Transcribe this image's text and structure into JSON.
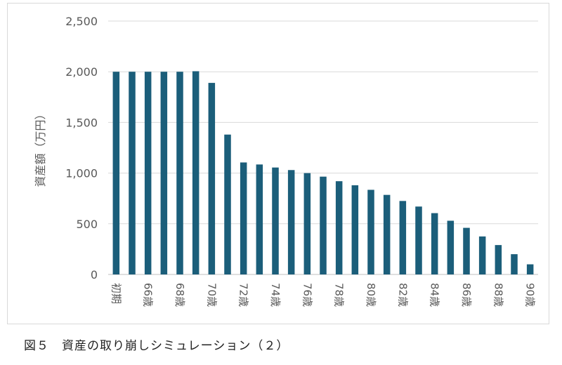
{
  "caption": "図５　資産の取り崩しシミュレーション（２）",
  "chart_data": {
    "type": "bar",
    "ylabel": "資産額（万円）",
    "xlabel": "",
    "ylim": [
      0,
      2500
    ],
    "yticks": [
      0,
      500,
      1000,
      1500,
      2000,
      2500
    ],
    "ytick_labels": [
      "0",
      "500",
      "1,000",
      "1,500",
      "2,000",
      "2,500"
    ],
    "grid": true,
    "color": "#1b5e7a",
    "categories": [
      "初期",
      "65歳",
      "66歳",
      "67歳",
      "68歳",
      "69歳",
      "70歳",
      "71歳",
      "72歳",
      "73歳",
      "74歳",
      "75歳",
      "76歳",
      "77歳",
      "78歳",
      "79歳",
      "80歳",
      "81歳",
      "82歳",
      "83歳",
      "84歳",
      "85歳",
      "86歳",
      "87歳",
      "88歳",
      "89歳",
      "90歳"
    ],
    "shown_tick_labels": [
      "初期",
      "66歳",
      "68歳",
      "70歳",
      "72歳",
      "74歳",
      "76歳",
      "78歳",
      "80歳",
      "82歳",
      "84歳",
      "86歳",
      "88歳",
      "90歳"
    ],
    "values": [
      2000,
      2000,
      2000,
      2000,
      2000,
      2005,
      1890,
      1380,
      1105,
      1085,
      1055,
      1030,
      1000,
      965,
      920,
      880,
      835,
      785,
      725,
      670,
      605,
      530,
      460,
      375,
      290,
      200,
      100
    ]
  }
}
